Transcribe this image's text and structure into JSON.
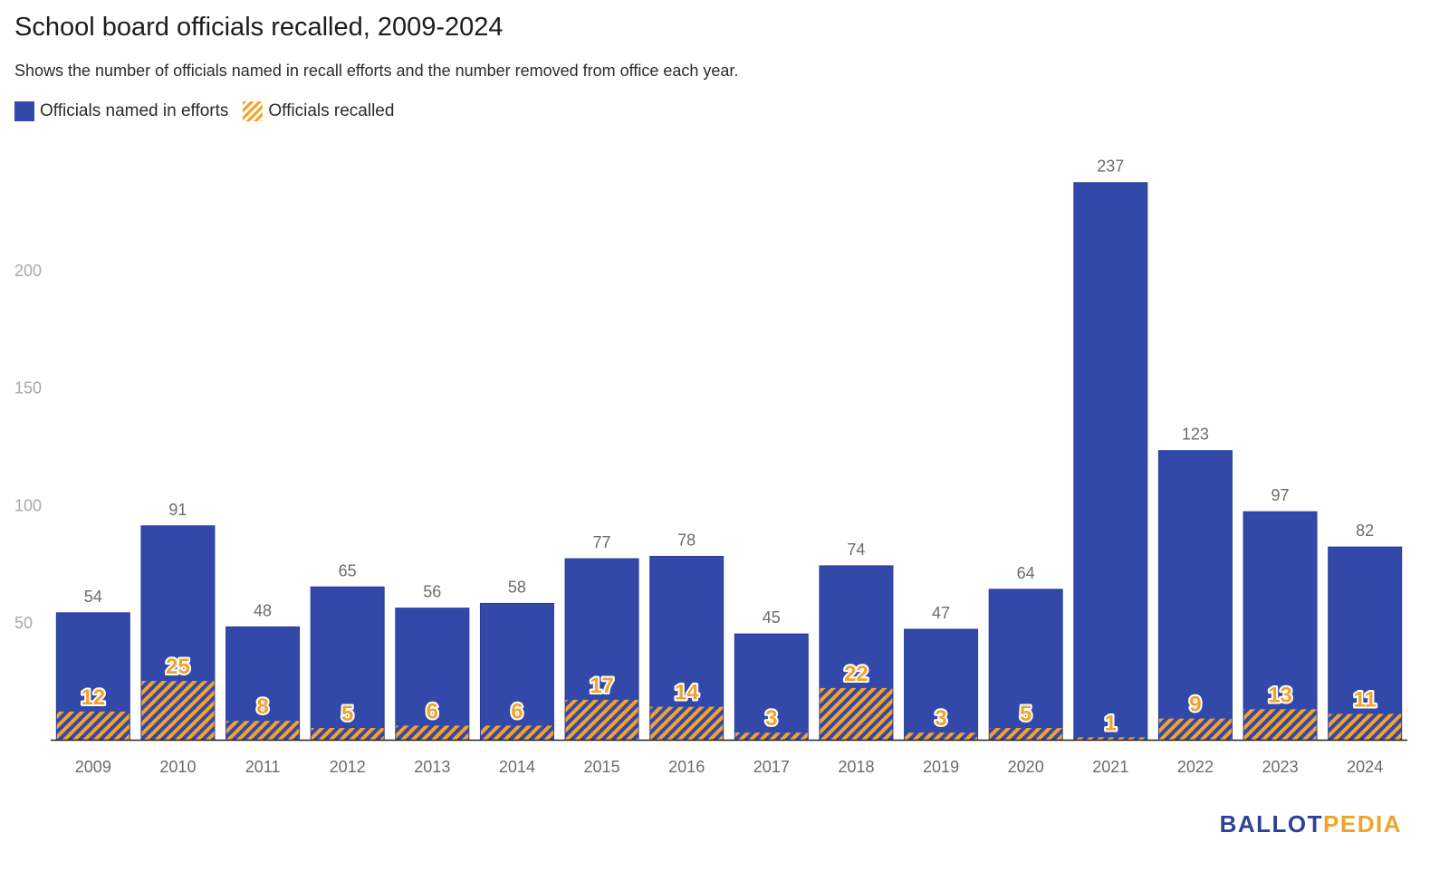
{
  "chart_data": {
    "type": "bar",
    "title": "School board officials recalled, 2009-2024",
    "subtitle": "Shows the number of officials named in recall efforts and the number removed from office each year.",
    "categories": [
      "2009",
      "2010",
      "2011",
      "2012",
      "2013",
      "2014",
      "2015",
      "2016",
      "2017",
      "2018",
      "2019",
      "2020",
      "2021",
      "2022",
      "2023",
      "2024"
    ],
    "series": [
      {
        "name": "Officials named in efforts",
        "color": "#3349a9",
        "values": [
          54,
          91,
          48,
          65,
          56,
          58,
          77,
          78,
          45,
          74,
          47,
          64,
          237,
          123,
          97,
          82
        ]
      },
      {
        "name": "Officials recalled",
        "color": "#f5a227",
        "pattern": "hatched",
        "values": [
          12,
          25,
          8,
          5,
          6,
          6,
          17,
          14,
          3,
          22,
          3,
          5,
          1,
          9,
          13,
          11
        ]
      }
    ],
    "y_ticks": [
      "50",
      "100",
      "150",
      "200"
    ],
    "ylim": [
      0,
      250
    ],
    "xlabel": "",
    "ylabel": "",
    "grid": false,
    "legend": "top-left",
    "overlapping_bars": true
  },
  "brand": {
    "part1": "BALLOT",
    "part2": "PEDIA"
  }
}
